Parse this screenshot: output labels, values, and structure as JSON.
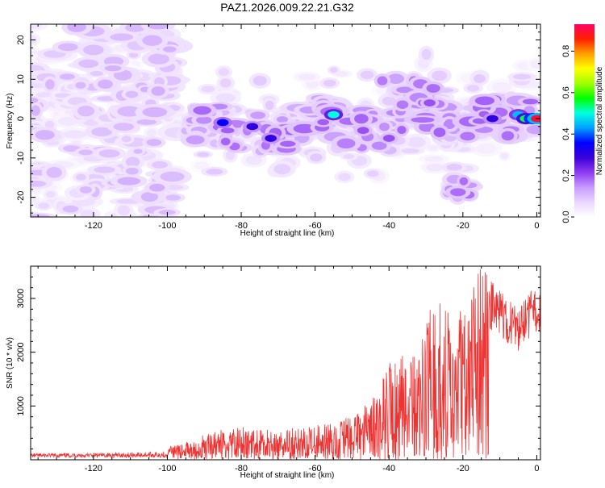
{
  "figure": {
    "title": "PAZ1.2026.009.22.21.G32"
  },
  "chart_data": [
    {
      "type": "heatmap",
      "title": "PAZ1.2026.009.22.21.G32",
      "xlabel": "Height of straight line (km)",
      "ylabel": "Frequency (Hz)",
      "xlim": [
        -137,
        1
      ],
      "ylim": [
        -25,
        24
      ],
      "xticks": [
        -120,
        -100,
        -80,
        -60,
        -40,
        -20,
        0
      ],
      "yticks": [
        -20,
        -10,
        0,
        10,
        20
      ],
      "colorbar": {
        "label": "Normalized spectral amplitude",
        "range": [
          0.0,
          0.93
        ],
        "ticks": [
          0.0,
          0.2,
          0.4,
          0.6,
          0.8
        ],
        "colors": [
          "#ffffff",
          "#ead6ff",
          "#c79bff",
          "#8f3cf0",
          "#3b00d8",
          "#0000ff",
          "#00a0ff",
          "#00ffe0",
          "#00ff00",
          "#a0ff00",
          "#ffff00",
          "#ffa000",
          "#ff2000",
          "#ff0066"
        ]
      },
      "ridge": {
        "description_points_km_hz": [
          [
            -92,
            -1
          ],
          [
            -85,
            -2
          ],
          [
            -78,
            -3
          ],
          [
            -72,
            -5
          ],
          [
            -65,
            -2
          ],
          [
            -57,
            1
          ],
          [
            -50,
            -3
          ],
          [
            -45,
            -2
          ],
          [
            -40,
            -4
          ],
          [
            -35,
            1
          ],
          [
            -30,
            3
          ],
          [
            -25,
            0
          ],
          [
            -20,
            -2
          ],
          [
            -15,
            0
          ],
          [
            -10,
            1
          ],
          [
            -5,
            0
          ],
          [
            0,
            0
          ]
        ],
        "peaks_km_hz_amp": [
          [
            -85,
            -1,
            0.35
          ],
          [
            -77,
            -2,
            0.3
          ],
          [
            -72,
            -5,
            0.3
          ],
          [
            -55,
            1,
            0.5
          ],
          [
            -47,
            -3,
            0.2
          ],
          [
            -40,
            -5,
            0.2
          ],
          [
            -29,
            4,
            0.2
          ],
          [
            -12,
            0,
            0.3
          ],
          [
            -5,
            1,
            0.45
          ],
          [
            -3,
            0,
            0.55
          ],
          [
            -1,
            0,
            0.75
          ],
          [
            0,
            0,
            0.9
          ]
        ]
      }
    },
    {
      "type": "line",
      "xlabel": "Height of straight line (km)",
      "ylabel": "SNR (10 * v/v)",
      "xlim": [
        -137,
        1
      ],
      "ylim": [
        0,
        3600
      ],
      "xticks": [
        -120,
        -100,
        -80,
        -60,
        -40,
        -20,
        0
      ],
      "yticks": [
        1000,
        2000,
        3000
      ],
      "line_color": "#ee3333",
      "envelope_km_snr": [
        [
          -137,
          130
        ],
        [
          -120,
          140
        ],
        [
          -105,
          170
        ],
        [
          -100,
          200
        ],
        [
          -95,
          350
        ],
        [
          -90,
          450
        ],
        [
          -85,
          550
        ],
        [
          -80,
          600
        ],
        [
          -70,
          500
        ],
        [
          -65,
          580
        ],
        [
          -60,
          600
        ],
        [
          -50,
          800
        ],
        [
          -45,
          1100
        ],
        [
          -40,
          1800
        ],
        [
          -35,
          2000
        ],
        [
          -30,
          2500
        ],
        [
          -28,
          3300
        ],
        [
          -25,
          2800
        ],
        [
          -22,
          2700
        ],
        [
          -18,
          2900
        ],
        [
          -16,
          3600
        ],
        [
          -14,
          3500
        ],
        [
          -12,
          3300
        ],
        [
          -8,
          3000
        ],
        [
          -5,
          2800
        ],
        [
          -2,
          3100
        ],
        [
          0,
          3300
        ]
      ]
    }
  ]
}
